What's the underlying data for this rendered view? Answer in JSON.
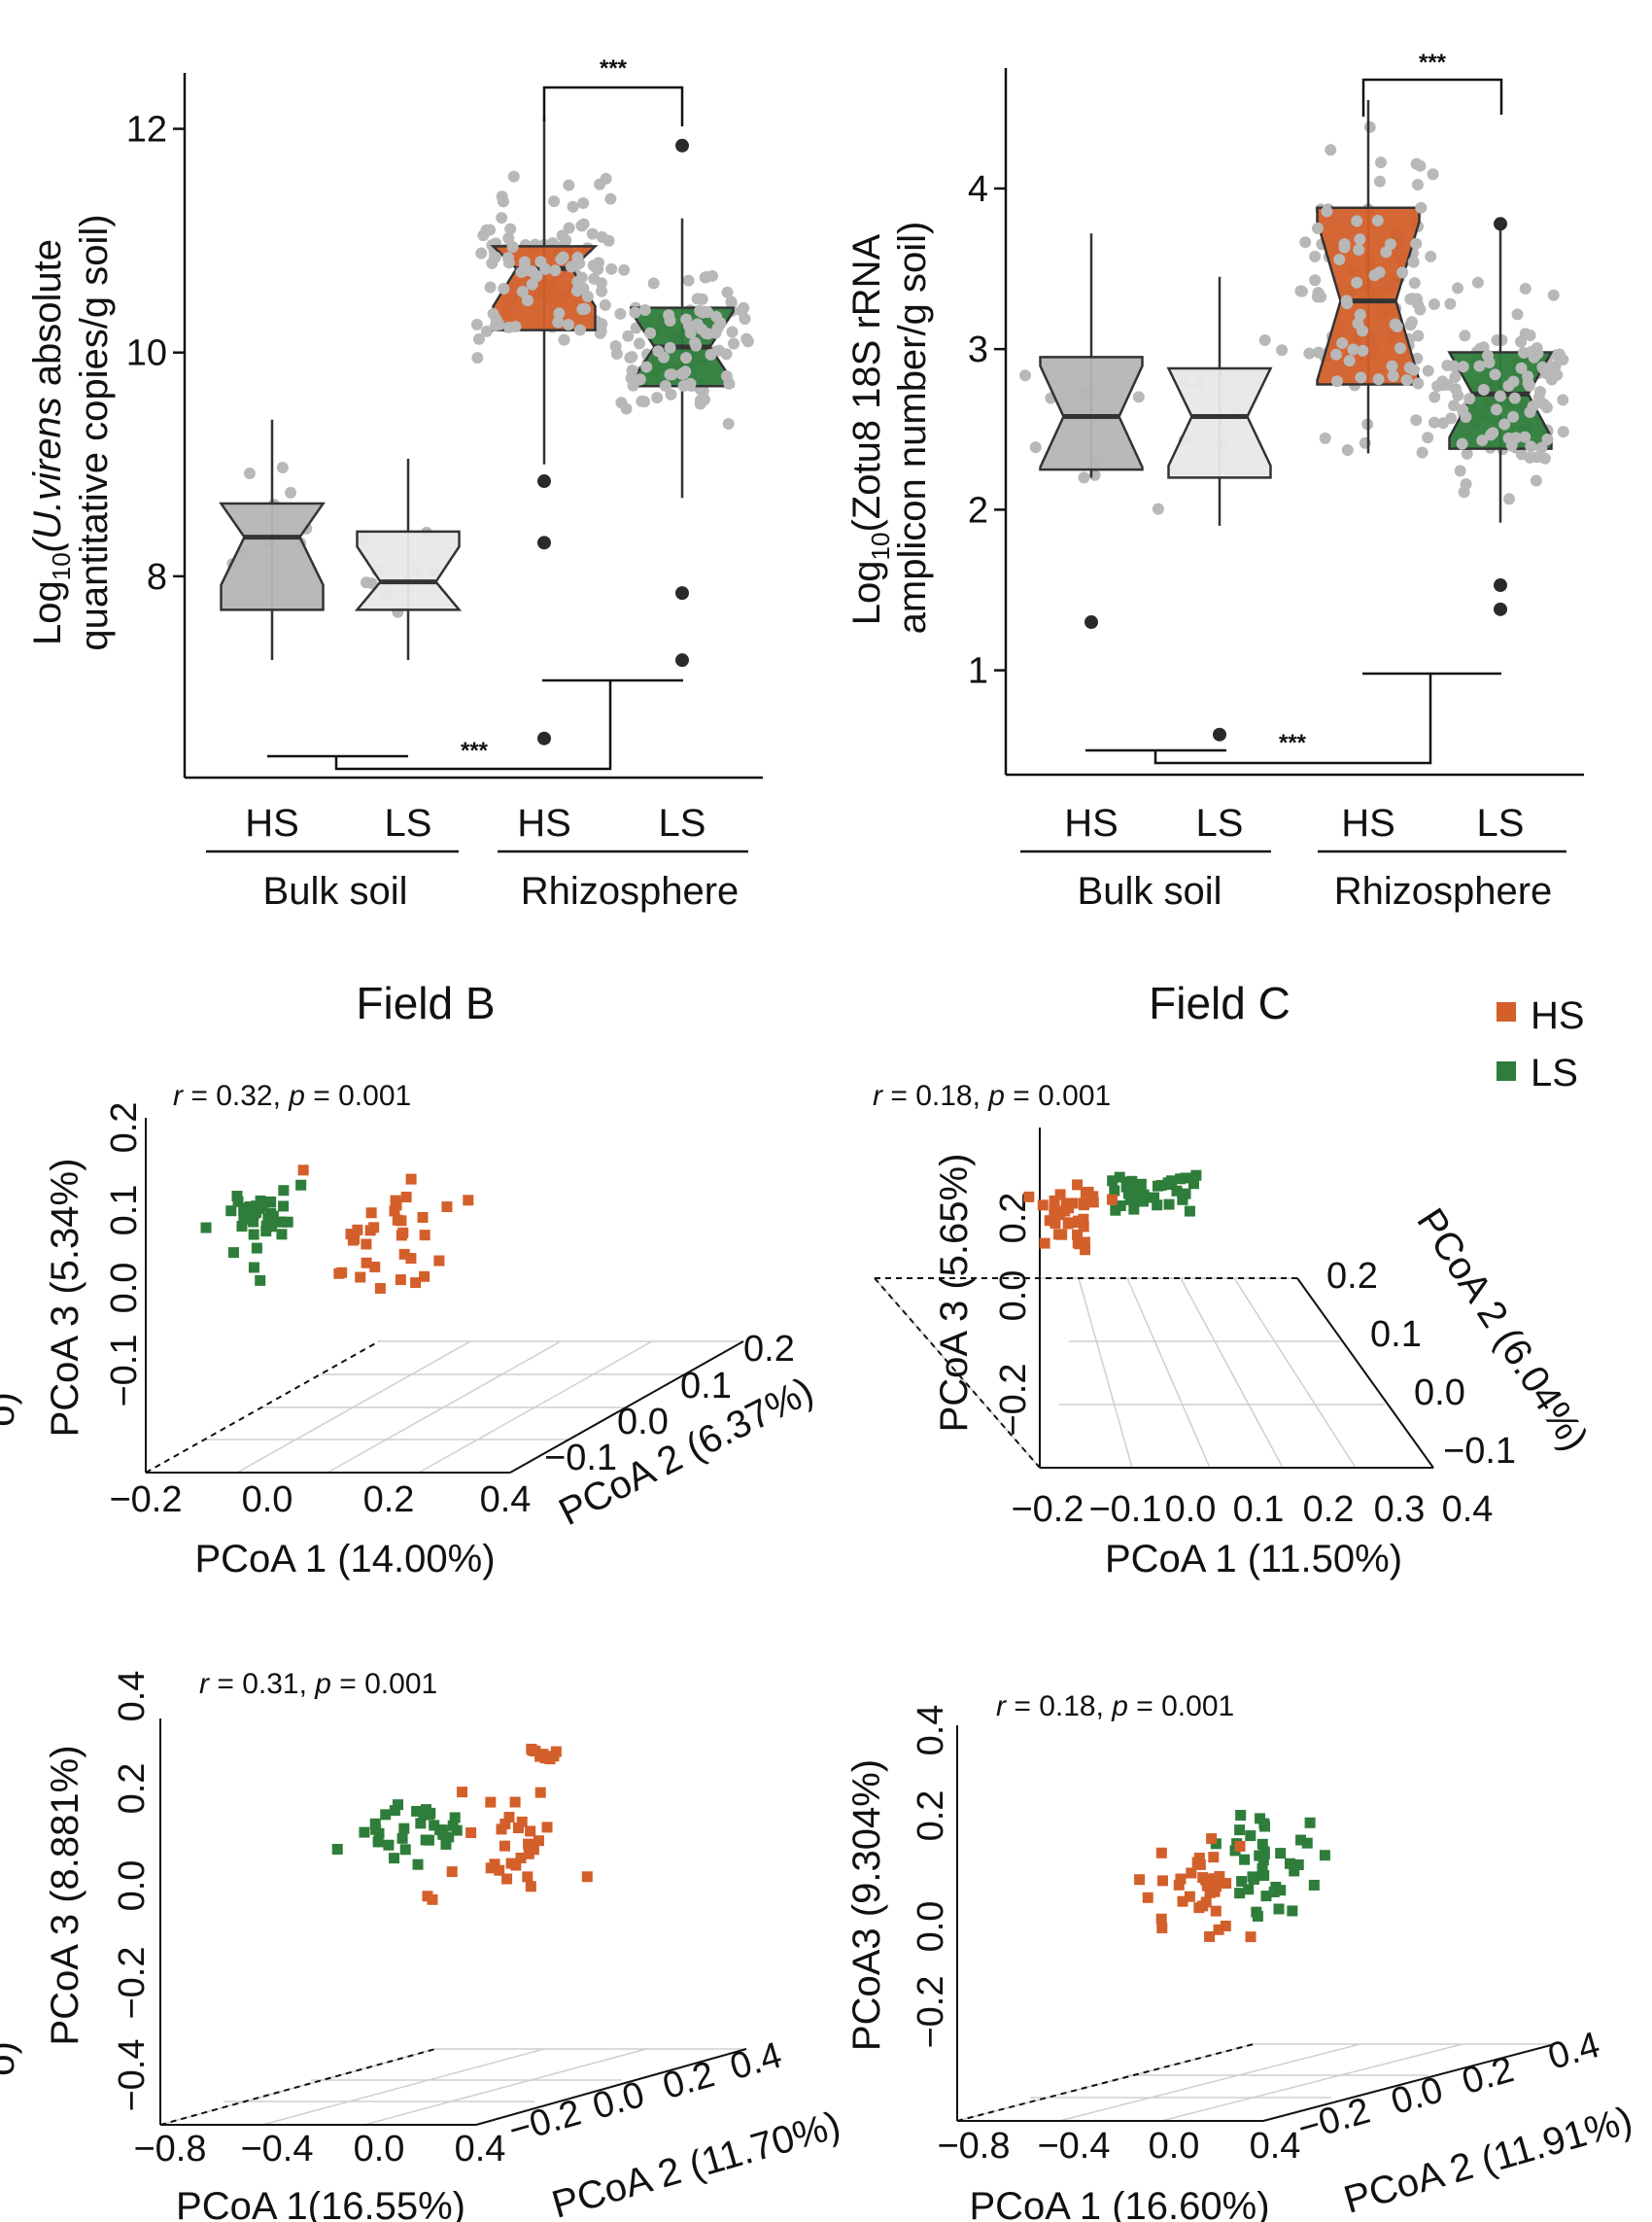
{
  "colors": {
    "HS": "#D35F2A",
    "LS": "#2E7D3A",
    "bulk_HS_box": "#B5B5B5",
    "bulk_LS_box": "#E8E8E8",
    "jitter": "#B8B8B8",
    "outlier": "#2A2A2A"
  },
  "chart_data": [
    {
      "id": "boxplot_uvirens",
      "type": "box",
      "ylabel_line1_pre": "Log",
      "ylabel_sub": "10",
      "ylabel_line1_italic": "(U.virens",
      "ylabel_line1_post": " absolute",
      "ylabel_line2": "quantitative copies/g soil)",
      "ylim": [
        6.2,
        12.5
      ],
      "yticks": [
        "8",
        "10",
        "12"
      ],
      "ytick_values": [
        8,
        10,
        12
      ],
      "categories": [
        "HS",
        "LS",
        "HS",
        "LS"
      ],
      "groups": [
        "Bulk soil",
        "Rhizosphere"
      ],
      "boxes": [
        {
          "name": "Bulk HS",
          "q1": 7.7,
          "median": 8.35,
          "q3": 8.65,
          "whisker_low": 7.25,
          "whisker_high": 9.4
        },
        {
          "name": "Bulk LS",
          "q1": 7.7,
          "median": 7.95,
          "q3": 8.4,
          "whisker_low": 7.25,
          "whisker_high": 9.05
        },
        {
          "name": "Rhizo HS",
          "q1": 10.2,
          "median": 10.75,
          "q3": 10.95,
          "whisker_low": 9.0,
          "whisker_high": 12.1
        },
        {
          "name": "Rhizo LS",
          "q1": 9.7,
          "median": 10.05,
          "q3": 10.4,
          "whisker_low": 8.7,
          "whisker_high": 11.2
        }
      ],
      "outliers": [
        [
          3,
          6.55
        ],
        [
          3,
          8.3
        ],
        [
          3,
          8.85
        ],
        [
          4,
          11.85
        ],
        [
          4,
          7.85
        ],
        [
          4,
          7.25
        ]
      ],
      "significance": [
        "***",
        "***"
      ]
    },
    {
      "id": "boxplot_zotu8",
      "type": "box",
      "ylabel_line1_pre": "Log",
      "ylabel_sub": "10",
      "ylabel_line1_italic": "",
      "ylabel_line1_post": "(Zotu8 18S rRNA",
      "ylabel_line2": "amplicon number/g soil)",
      "ylim": [
        0.35,
        4.75
      ],
      "yticks": [
        "1",
        "2",
        "3",
        "4"
      ],
      "ytick_values": [
        1,
        2,
        3,
        4
      ],
      "categories": [
        "HS",
        "LS",
        "HS",
        "LS"
      ],
      "groups": [
        "Bulk soil",
        "Rhizosphere"
      ],
      "boxes": [
        {
          "name": "Bulk HS",
          "q1": 2.25,
          "median": 2.58,
          "q3": 2.95,
          "whisker_low": 2.2,
          "whisker_high": 3.72
        },
        {
          "name": "Bulk LS",
          "q1": 2.2,
          "median": 2.58,
          "q3": 2.88,
          "whisker_low": 1.9,
          "whisker_high": 3.45
        },
        {
          "name": "Rhizo HS",
          "q1": 2.78,
          "median": 3.3,
          "q3": 3.88,
          "whisker_low": 2.35,
          "whisker_high": 4.55
        },
        {
          "name": "Rhizo LS",
          "q1": 2.38,
          "median": 2.72,
          "q3": 2.98,
          "whisker_low": 1.92,
          "whisker_high": 3.78
        }
      ],
      "outliers": [
        [
          1,
          1.3
        ],
        [
          2,
          0.6
        ],
        [
          4,
          3.78
        ],
        [
          4,
          1.53
        ],
        [
          4,
          1.38
        ]
      ],
      "significance": [
        "***",
        "***"
      ]
    },
    {
      "id": "pcoa_field_b_top",
      "type": "scatter3d",
      "title": "Field B",
      "stat_r": "r",
      "stat_r_val": " = 0.32, ",
      "stat_p": "p",
      "stat_p_val": " = 0.001",
      "xlabel": "PCoA 1 (14.00%)",
      "ylabel": "PCoA 2 (6.37%)",
      "zlabel": "PCoA 3 (5.34%)",
      "xticks": [
        "−0.2",
        "0.0",
        "0.2",
        "0.4"
      ],
      "yticks": [
        "−0.1",
        "0.0",
        "0.1",
        "0.2"
      ],
      "zticks": [
        "−0.1",
        "0.0",
        "0.1",
        "0.2"
      ],
      "stray": "o)"
    },
    {
      "id": "pcoa_field_c_top",
      "type": "scatter3d",
      "title": "Field C",
      "stat_r": "r",
      "stat_r_val": " = 0.18, ",
      "stat_p": "p",
      "stat_p_val": " = 0.001",
      "xlabel": "PCoA 1 (11.50%)",
      "ylabel": "PCoA 2 (6.04%)",
      "zlabel": "PCoA 3 (5.65%)",
      "xticks": [
        "−0.2",
        "−0.1",
        "0.0",
        "0.1",
        "0.2",
        "0.3",
        "0.4"
      ],
      "yticks": [
        "−0.1",
        "0.0",
        "0.1",
        "0.2"
      ],
      "zticks": [
        "−0.2",
        "0.0",
        "0.2"
      ]
    },
    {
      "id": "pcoa_field_b_bottom",
      "type": "scatter3d",
      "stat_r": "r",
      "stat_r_val": " = 0.31, ",
      "stat_p": "p",
      "stat_p_val": " = 0.001",
      "xlabel": "PCoA 1(16.55%)",
      "ylabel": "PCoA 2 (11.70%)",
      "zlabel": "PCoA 3 (8.881%)",
      "xticks": [
        "−0.8",
        "−0.4",
        "0.0",
        "0.4"
      ],
      "yticks": [
        "−0.2",
        "0.0",
        "0.2",
        "0.4"
      ],
      "zticks": [
        "−0.4",
        "−0.2",
        "0.0",
        "0.2",
        "0.4"
      ],
      "stray": "o)"
    },
    {
      "id": "pcoa_field_c_bottom",
      "type": "scatter3d",
      "stat_r": "r",
      "stat_r_val": " = 0.18, ",
      "stat_p": "p",
      "stat_p_val": " = 0.001",
      "xlabel": "PCoA 1 (16.60%)",
      "ylabel": "PCoA 2 (11.91%)",
      "zlabel": "PCoA3 (9.304%)",
      "xticks": [
        "−0.8",
        "−0.4",
        "0.0",
        "0.4"
      ],
      "yticks": [
        "−0.2",
        "0.0",
        "0.2",
        "0.4"
      ],
      "zticks": [
        "−0.2",
        "0.0",
        "0.2",
        "0.4"
      ]
    }
  ],
  "legend": {
    "items": [
      {
        "label": "HS",
        "color": "#D35F2A"
      },
      {
        "label": "LS",
        "color": "#2E7D3A"
      }
    ]
  }
}
